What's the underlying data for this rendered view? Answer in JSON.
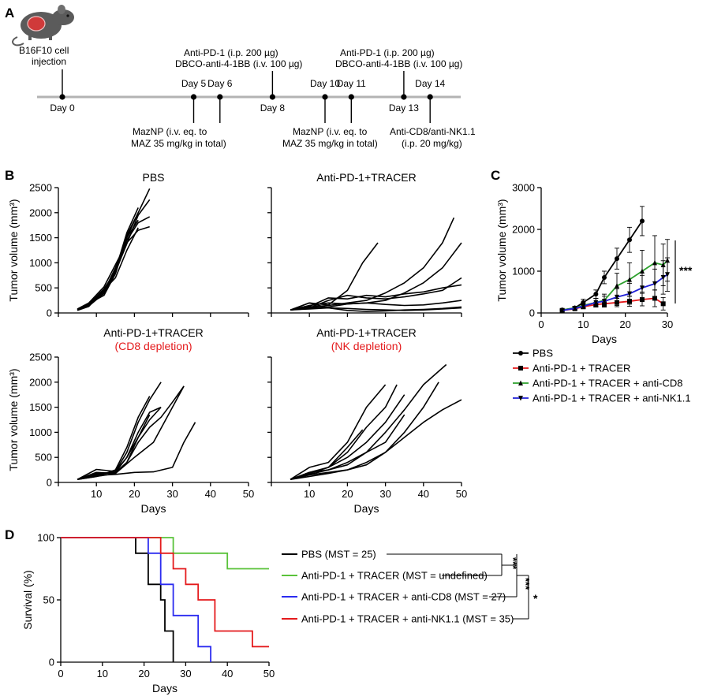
{
  "colors": {
    "pbs": "#000000",
    "tracer": "#e41a1c",
    "cd8": "#2ca02c",
    "nk": "#1f1fd6",
    "surv_tracer": "#5ac23a",
    "surv_cd8": "#2b2bf0",
    "surv_nk": "#e41a1c",
    "timeline": "#b3b3b3",
    "mouse_body": "#5b5b5b",
    "tumor": "#d03a3a"
  },
  "panel_labels": {
    "a": "A",
    "b": "B",
    "c": "C",
    "d": "D"
  },
  "timeline": {
    "cell_label_1": "B16F10 cell",
    "cell_label_2": "injection",
    "events": [
      {
        "day": 0,
        "label": "Day 0"
      },
      {
        "day": 5,
        "label": "Day 5"
      },
      {
        "day": 6,
        "label": "Day 6"
      },
      {
        "day": 8,
        "label": "Day 8"
      },
      {
        "day": 10,
        "label": "Day 10"
      },
      {
        "day": 11,
        "label": "Day 11"
      },
      {
        "day": 13,
        "label": "Day 13"
      },
      {
        "day": 14,
        "label": "Day 14"
      }
    ],
    "anti_pd1_1": "Anti-PD-1 (i.p. 200 µg)",
    "dbco_1": "DBCO-anti-4-1BB (i.v. 100 µg)",
    "anti_pd1_2": "Anti-PD-1 (i.p. 200 µg)",
    "dbco_2": "DBCO-anti-4-1BB (i.v. 100 µg)",
    "maznp_1a": "MazNP (i.v. eq. to",
    "maznp_1b": "MAZ 35 mg/kg in total)",
    "maznp_2a": "MazNP (i.v. eq. to",
    "maznp_2b": "MAZ 35 mg/kg in total)",
    "deplete_a": "Anti-CD8/anti-NK1.1",
    "deplete_b": "(i.p. 20 mg/kg)"
  },
  "chart_data": [
    {
      "id": "B1",
      "type": "line",
      "title": "PBS",
      "xlabel": "",
      "ylabel": "Tumor volume (mm³)",
      "xlim": [
        0,
        50
      ],
      "ylim": [
        0,
        2500
      ],
      "xticks": [
        "",
        "",
        "",
        "",
        "",
        ""
      ],
      "yticks": [
        "0",
        "500",
        "1000",
        "1500",
        "2000",
        "2500"
      ],
      "series": [
        {
          "x": [
            5,
            8,
            12,
            15,
            18,
            21,
            24
          ],
          "y": [
            70,
            180,
            430,
            900,
            1500,
            2000,
            2480
          ]
        },
        {
          "x": [
            5,
            8,
            12,
            15,
            18,
            21,
            24
          ],
          "y": [
            60,
            170,
            480,
            820,
            1380,
            1950,
            2260
          ]
        },
        {
          "x": [
            5,
            8,
            12,
            15,
            18,
            21,
            24
          ],
          "y": [
            55,
            150,
            400,
            880,
            1450,
            1800,
            1920
          ]
        },
        {
          "x": [
            5,
            8,
            12,
            15,
            18,
            21,
            24
          ],
          "y": [
            80,
            200,
            520,
            960,
            1400,
            1650,
            1720
          ]
        },
        {
          "x": [
            5,
            8,
            12,
            15,
            18,
            21
          ],
          "y": [
            65,
            160,
            440,
            850,
            1600,
            2100
          ]
        },
        {
          "x": [
            5,
            8,
            12,
            15,
            18,
            21
          ],
          "y": [
            70,
            190,
            350,
            780,
            1500,
            1850
          ]
        },
        {
          "x": [
            5,
            8,
            12,
            15,
            18,
            21
          ],
          "y": [
            60,
            140,
            390,
            820,
            1550,
            2000
          ]
        },
        {
          "x": [
            5,
            8,
            12,
            15,
            18,
            21
          ],
          "y": [
            50,
            130,
            460,
            700,
            1250,
            1700
          ]
        }
      ]
    },
    {
      "id": "B2",
      "type": "line",
      "title": "Anti-PD-1+TRACER",
      "xlabel": "",
      "ylabel": "",
      "xlim": [
        0,
        50
      ],
      "ylim": [
        0,
        2500
      ],
      "xticks": [
        "",
        "",
        "",
        "",
        "",
        ""
      ],
      "yticks": [
        "",
        "",
        "",
        "",
        "",
        ""
      ],
      "series": [
        {
          "x": [
            5,
            10,
            15,
            20,
            24,
            28
          ],
          "y": [
            60,
            200,
            160,
            450,
            1000,
            1400
          ]
        },
        {
          "x": [
            5,
            10,
            15,
            20,
            25,
            30,
            35,
            40,
            45,
            48
          ],
          "y": [
            60,
            120,
            150,
            200,
            250,
            400,
            600,
            900,
            1400,
            1900
          ]
        },
        {
          "x": [
            5,
            10,
            15,
            20,
            25,
            30,
            35,
            40,
            45,
            50
          ],
          "y": [
            60,
            150,
            200,
            180,
            200,
            250,
            400,
            600,
            900,
            1400
          ]
        },
        {
          "x": [
            5,
            10,
            15,
            20,
            25,
            30,
            35,
            40,
            45,
            50
          ],
          "y": [
            60,
            100,
            250,
            350,
            300,
            280,
            320,
            380,
            450,
            700
          ]
        },
        {
          "x": [
            5,
            10,
            15,
            20,
            25,
            30,
            35,
            40,
            45,
            50
          ],
          "y": [
            60,
            130,
            300,
            280,
            350,
            320,
            380,
            420,
            500,
            560
          ]
        },
        {
          "x": [
            5,
            10,
            15,
            20,
            25,
            30,
            35,
            40,
            45,
            50
          ],
          "y": [
            60,
            100,
            120,
            180,
            200,
            170,
            150,
            160,
            200,
            250
          ]
        },
        {
          "x": [
            5,
            10,
            15,
            20,
            25,
            30,
            35,
            40,
            45,
            50
          ],
          "y": [
            60,
            80,
            100,
            90,
            70,
            60,
            50,
            60,
            80,
            100
          ]
        },
        {
          "x": [
            5,
            10,
            15,
            20,
            25,
            30,
            35,
            40,
            45,
            50
          ],
          "y": [
            60,
            200,
            100,
            50,
            30,
            40,
            60,
            70,
            90,
            120
          ]
        }
      ]
    },
    {
      "id": "B3",
      "type": "line",
      "title": "Anti-PD-1+TRACER",
      "subtitle": "(CD8 depletion)",
      "xlabel": "Days",
      "ylabel": "Tumor volume (mm³)",
      "xlim": [
        0,
        50
      ],
      "ylim": [
        0,
        2500
      ],
      "xticks": [
        "",
        "10",
        "20",
        "30",
        "40",
        "50"
      ],
      "yticks": [
        "0",
        "500",
        "1000",
        "1500",
        "2000",
        "2500"
      ],
      "series": [
        {
          "x": [
            5,
            10,
            15,
            18,
            21,
            24,
            27
          ],
          "y": [
            60,
            150,
            220,
            600,
            1200,
            1650,
            2000
          ]
        },
        {
          "x": [
            5,
            10,
            15,
            18,
            21,
            24
          ],
          "y": [
            60,
            120,
            250,
            700,
            1300,
            1720
          ]
        },
        {
          "x": [
            5,
            10,
            15,
            18,
            21,
            24,
            27
          ],
          "y": [
            60,
            180,
            200,
            500,
            1000,
            1400,
            1500
          ]
        },
        {
          "x": [
            5,
            10,
            15,
            18,
            21,
            24,
            27,
            30,
            33
          ],
          "y": [
            60,
            160,
            200,
            400,
            800,
            1100,
            1300,
            1600,
            1920
          ]
        },
        {
          "x": [
            5,
            10,
            15,
            20,
            25,
            30,
            33
          ],
          "y": [
            60,
            120,
            180,
            500,
            800,
            1500,
            1920
          ]
        },
        {
          "x": [
            5,
            10,
            15,
            20,
            25,
            30,
            33,
            36
          ],
          "y": [
            60,
            140,
            160,
            200,
            210,
            300,
            800,
            1200
          ]
        },
        {
          "x": [
            5,
            10,
            15,
            18,
            21,
            24
          ],
          "y": [
            60,
            200,
            180,
            400,
            900,
            1350
          ]
        },
        {
          "x": [
            5,
            10,
            15,
            18,
            21,
            24,
            27
          ],
          "y": [
            60,
            260,
            220,
            500,
            900,
            1250,
            1500
          ]
        }
      ]
    },
    {
      "id": "B4",
      "type": "line",
      "title": "Anti-PD-1+TRACER",
      "subtitle": "(NK depletion)",
      "xlabel": "Days",
      "ylabel": "",
      "xlim": [
        0,
        50
      ],
      "ylim": [
        0,
        2500
      ],
      "xticks": [
        "",
        "10",
        "20",
        "30",
        "40",
        "50"
      ],
      "yticks": [
        "",
        "",
        "",
        "",
        "",
        ""
      ],
      "series": [
        {
          "x": [
            5,
            10,
            15,
            20,
            24
          ],
          "y": [
            60,
            200,
            300,
            700,
            1050
          ]
        },
        {
          "x": [
            5,
            10,
            15,
            20,
            25,
            30
          ],
          "y": [
            60,
            300,
            400,
            800,
            1500,
            1950
          ]
        },
        {
          "x": [
            5,
            10,
            15,
            20,
            25,
            30,
            33
          ],
          "y": [
            60,
            180,
            300,
            600,
            1100,
            1500,
            1950
          ]
        },
        {
          "x": [
            5,
            10,
            15,
            20,
            25,
            30,
            35,
            40,
            46
          ],
          "y": [
            60,
            200,
            250,
            350,
            600,
            1000,
            1450,
            1950,
            2350
          ]
        },
        {
          "x": [
            5,
            10,
            15,
            20,
            25,
            30,
            35,
            40,
            45,
            50
          ],
          "y": [
            60,
            150,
            200,
            250,
            400,
            600,
            900,
            1200,
            1450,
            1650
          ]
        },
        {
          "x": [
            5,
            10,
            15,
            20,
            25,
            30,
            35,
            40,
            44
          ],
          "y": [
            60,
            120,
            180,
            250,
            350,
            600,
            1000,
            1500,
            2000
          ]
        },
        {
          "x": [
            5,
            10,
            15,
            20,
            25,
            30,
            35
          ],
          "y": [
            60,
            180,
            300,
            500,
            800,
            1200,
            1750
          ]
        },
        {
          "x": [
            5,
            10,
            15,
            20,
            25,
            30,
            35
          ],
          "y": [
            60,
            160,
            250,
            400,
            600,
            800,
            1350
          ]
        }
      ]
    },
    {
      "id": "C",
      "type": "line",
      "title": "",
      "xlabel": "Days",
      "ylabel": "Tumor volume (mm³)",
      "xlim": [
        0,
        30
      ],
      "ylim": [
        0,
        3000
      ],
      "xticks": [
        "0",
        "10",
        "20",
        "30"
      ],
      "yticks": [
        "0",
        "1000",
        "2000",
        "3000"
      ],
      "significance": "***",
      "series": [
        {
          "name": "PBS",
          "key": "pbs",
          "x": [
            5,
            8,
            10,
            13,
            15,
            18,
            21,
            24
          ],
          "y": [
            70,
            120,
            250,
            450,
            850,
            1300,
            1750,
            2200
          ],
          "err": [
            20,
            40,
            80,
            100,
            150,
            250,
            300,
            350
          ]
        },
        {
          "name": "Anti-PD-1 + TRACER",
          "key": "tracer",
          "x": [
            5,
            8,
            10,
            13,
            15,
            18,
            21,
            24,
            27,
            29
          ],
          "y": [
            60,
            100,
            150,
            200,
            220,
            250,
            280,
            320,
            350,
            220
          ],
          "err": [
            20,
            40,
            50,
            60,
            80,
            100,
            120,
            150,
            200,
            150
          ]
        },
        {
          "name": "Anti-PD-1 + TRACER + anti-CD8",
          "key": "cd8",
          "x": [
            5,
            8,
            10,
            13,
            15,
            18,
            21,
            24,
            27,
            29,
            30
          ],
          "y": [
            70,
            120,
            180,
            250,
            300,
            650,
            800,
            1000,
            1200,
            1150,
            1260
          ],
          "err": [
            20,
            40,
            60,
            100,
            150,
            300,
            400,
            500,
            650,
            500,
            500
          ]
        },
        {
          "name": "Anti-PD-1 + TRACER + anti-NK1.1",
          "key": "nk",
          "x": [
            5,
            8,
            10,
            13,
            15,
            18,
            21,
            24,
            27,
            29,
            30
          ],
          "y": [
            60,
            110,
            160,
            250,
            280,
            380,
            460,
            600,
            700,
            850,
            920
          ],
          "err": [
            20,
            40,
            60,
            100,
            120,
            200,
            250,
            300,
            350,
            400,
            400
          ]
        }
      ]
    },
    {
      "id": "D",
      "type": "line",
      "title": "",
      "xlabel": "Days",
      "ylabel": "Survival (%)",
      "xlim": [
        0,
        50
      ],
      "ylim": [
        0,
        100
      ],
      "xticks": [
        "0",
        "10",
        "20",
        "30",
        "40",
        "50"
      ],
      "yticks": [
        "0",
        "50",
        "100"
      ],
      "series": [
        {
          "name": "PBS (MST = 25)",
          "key": "pbs",
          "x": [
            0,
            18,
            18,
            21,
            21,
            24,
            24,
            25,
            25,
            27,
            27
          ],
          "y": [
            100,
            100,
            87.5,
            87.5,
            62.5,
            62.5,
            50,
            50,
            25,
            25,
            0
          ]
        },
        {
          "name": "Anti-PD-1 + TRACER (MST = undefined)",
          "key": "surv_tracer",
          "x": [
            0,
            27,
            27,
            40,
            40,
            50
          ],
          "y": [
            100,
            100,
            87.5,
            87.5,
            75,
            75
          ]
        },
        {
          "name": "Anti-PD-1 + TRACER + anti-CD8 (MST = 27)",
          "key": "surv_cd8",
          "x": [
            0,
            21,
            21,
            24,
            24,
            27,
            27,
            33,
            33,
            36,
            36
          ],
          "y": [
            100,
            100,
            87.5,
            87.5,
            62.5,
            62.5,
            37.5,
            37.5,
            12.5,
            12.5,
            0
          ]
        },
        {
          "name": "Anti-PD-1 + TRACER + anti-NK1.1 (MST = 35)",
          "key": "surv_nk",
          "x": [
            0,
            24,
            24,
            27,
            27,
            30,
            30,
            33,
            33,
            37,
            37,
            46,
            46,
            50
          ],
          "y": [
            100,
            100,
            87.5,
            87.5,
            75,
            75,
            62.5,
            62.5,
            50,
            50,
            25,
            25,
            12.5,
            12.5
          ]
        }
      ],
      "significance": [
        "***",
        "***",
        "*"
      ]
    }
  ]
}
